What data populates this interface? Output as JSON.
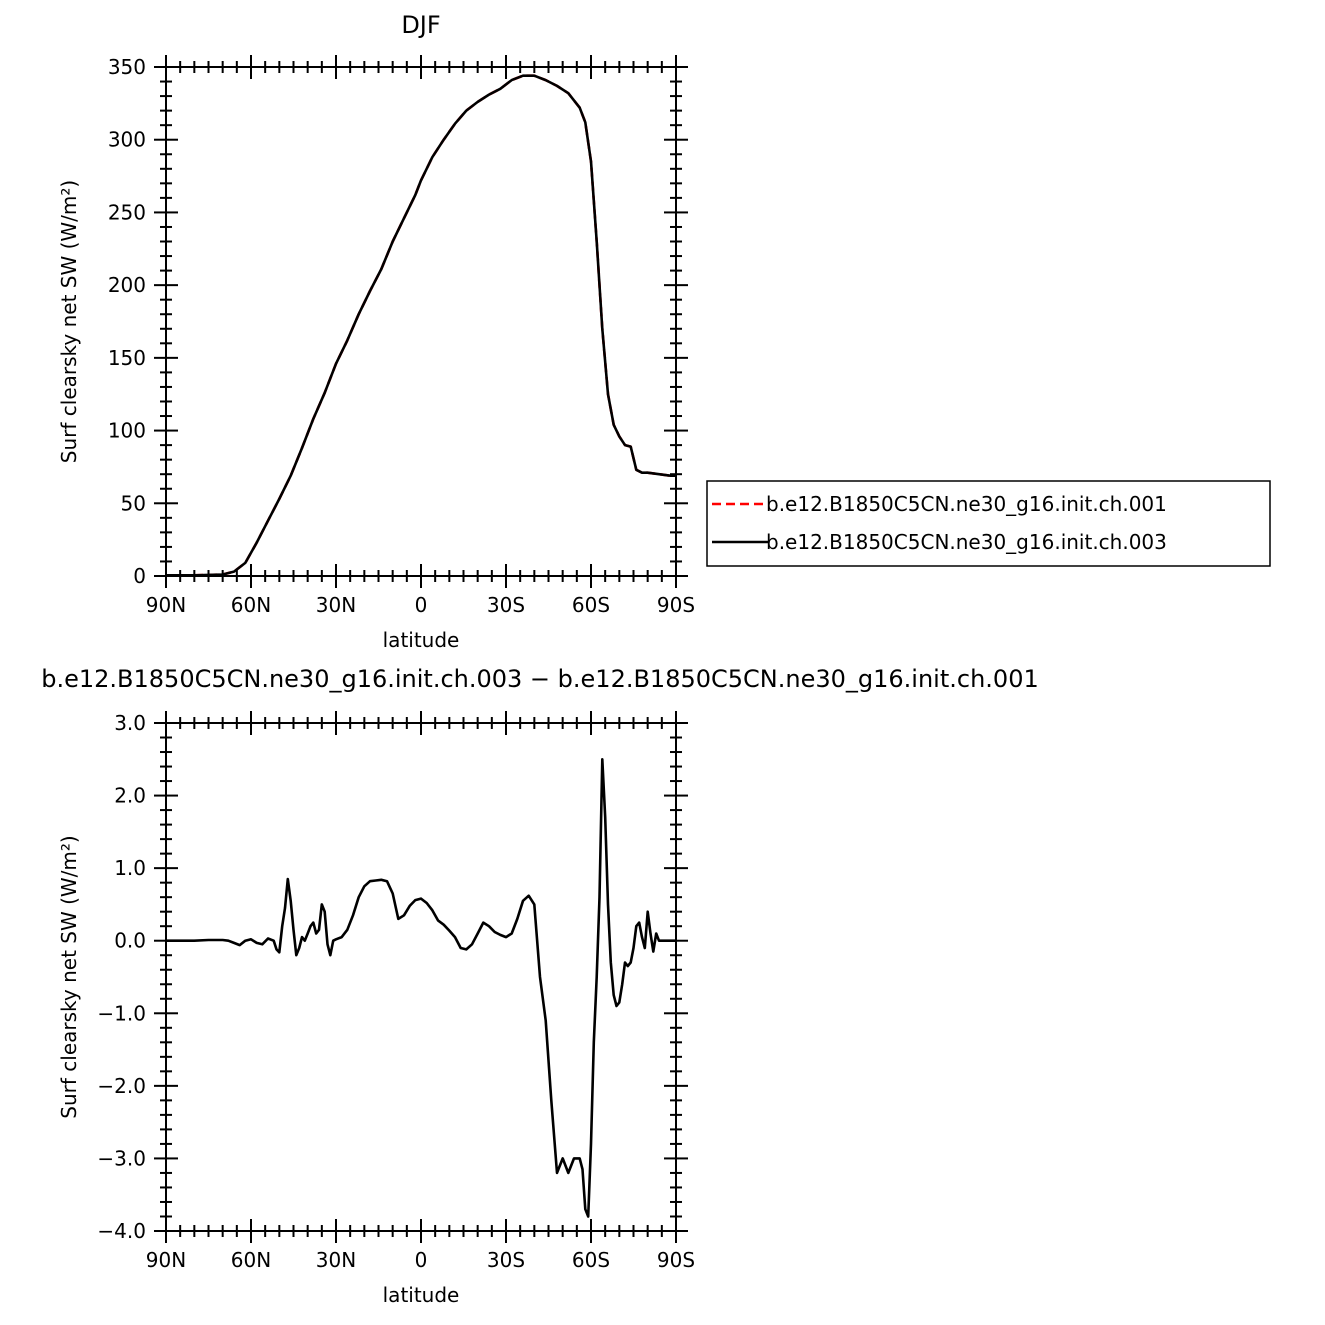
{
  "chart_data": [
    {
      "type": "line",
      "title": "DJF",
      "xlabel": "latitude",
      "ylabel": "Surf clearsky net SW (W/m²)",
      "xlim": [
        90,
        -90
      ],
      "ylim": [
        0,
        350
      ],
      "x_ticks": [
        {
          "value": 90,
          "label": "90N"
        },
        {
          "value": 60,
          "label": "60N"
        },
        {
          "value": 30,
          "label": "30N"
        },
        {
          "value": 0,
          "label": "0"
        },
        {
          "value": -30,
          "label": "30S"
        },
        {
          "value": -60,
          "label": "60S"
        },
        {
          "value": -90,
          "label": "90S"
        }
      ],
      "y_ticks": [
        {
          "value": 0,
          "label": "0"
        },
        {
          "value": 50,
          "label": "50"
        },
        {
          "value": 100,
          "label": "100"
        },
        {
          "value": 150,
          "label": "150"
        },
        {
          "value": 200,
          "label": "200"
        },
        {
          "value": 250,
          "label": "250"
        },
        {
          "value": 300,
          "label": "300"
        },
        {
          "value": 350,
          "label": "350"
        }
      ],
      "legend_position": "right",
      "series": [
        {
          "name": "b.e12.B1850C5CN.ne30_g16.init.ch.001",
          "color": "#ff0000",
          "style": "dashed",
          "x": [
            90,
            80,
            70,
            66,
            62,
            58,
            54,
            50,
            46,
            42,
            38,
            34,
            30,
            26,
            22,
            18,
            14,
            10,
            6,
            2,
            0,
            -4,
            -8,
            -12,
            -16,
            -20,
            -24,
            -28,
            -32,
            -36,
            -40,
            -44,
            -48,
            -52,
            -56,
            -58,
            -60,
            -62,
            -64,
            -66,
            -68,
            -70,
            -72,
            -74,
            -76,
            -78,
            -80,
            -84,
            -88,
            -90
          ],
          "values": [
            0.5,
            0.5,
            1,
            3,
            9,
            23,
            38,
            53,
            69,
            88,
            108,
            126,
            146,
            162,
            180,
            196,
            211,
            230,
            246,
            262,
            272,
            288,
            300,
            311,
            320,
            326,
            331,
            335,
            341,
            344,
            344,
            341,
            337,
            332,
            322,
            312,
            285,
            230,
            170,
            125,
            104,
            96,
            90,
            89,
            73,
            71,
            71,
            70,
            69,
            69
          ]
        },
        {
          "name": "b.e12.B1850C5CN.ne30_g16.init.ch.003",
          "color": "#000000",
          "style": "solid",
          "x": [
            90,
            80,
            70,
            66,
            62,
            58,
            54,
            50,
            46,
            42,
            38,
            34,
            30,
            26,
            22,
            18,
            14,
            10,
            6,
            2,
            0,
            -4,
            -8,
            -12,
            -16,
            -20,
            -24,
            -28,
            -32,
            -36,
            -40,
            -44,
            -48,
            -52,
            -56,
            -58,
            -60,
            -62,
            -64,
            -66,
            -68,
            -70,
            -72,
            -74,
            -76,
            -78,
            -80,
            -84,
            -88,
            -90
          ],
          "values": [
            0.5,
            0.5,
            1,
            3,
            9,
            23,
            38,
            53,
            69,
            88,
            108,
            126,
            146,
            162,
            180,
            196,
            211,
            230,
            246,
            262,
            272,
            288,
            300,
            311,
            320,
            326,
            331,
            335,
            341,
            344,
            344,
            341,
            337,
            332,
            322,
            312,
            285,
            230,
            170,
            125,
            104,
            96,
            90,
            89,
            73,
            71,
            71,
            70,
            69,
            69
          ]
        }
      ]
    },
    {
      "type": "line",
      "title": "b.e12.B1850C5CN.ne30_g16.init.ch.003 − b.e12.B1850C5CN.ne30_g16.init.ch.001",
      "xlabel": "latitude",
      "ylabel": "Surf clearsky net SW (W/m²)",
      "xlim": [
        90,
        -90
      ],
      "ylim": [
        -4.0,
        3.0
      ],
      "x_ticks": [
        {
          "value": 90,
          "label": "90N"
        },
        {
          "value": 60,
          "label": "60N"
        },
        {
          "value": 30,
          "label": "30N"
        },
        {
          "value": 0,
          "label": "0"
        },
        {
          "value": -30,
          "label": "30S"
        },
        {
          "value": -60,
          "label": "60S"
        },
        {
          "value": -90,
          "label": "90S"
        }
      ],
      "y_ticks": [
        {
          "value": -4.0,
          "label": "−4.0"
        },
        {
          "value": -3.0,
          "label": "−3.0"
        },
        {
          "value": -2.0,
          "label": "−2.0"
        },
        {
          "value": -1.0,
          "label": "−1.0"
        },
        {
          "value": 0.0,
          "label": "0.0"
        },
        {
          "value": 1.0,
          "label": "1.0"
        },
        {
          "value": 2.0,
          "label": "2.0"
        },
        {
          "value": 3.0,
          "label": "3.0"
        }
      ],
      "series": [
        {
          "name": "",
          "color": "#000000",
          "style": "solid",
          "x": [
            90,
            80,
            75,
            70,
            68,
            66,
            64,
            62,
            60,
            58,
            56,
            54,
            52,
            51,
            50,
            49,
            48,
            47,
            46,
            45,
            44,
            43,
            42,
            41,
            40,
            39,
            38,
            37,
            36,
            35,
            34,
            33,
            32,
            31,
            30,
            28,
            26,
            24,
            22,
            20,
            18,
            16,
            14,
            12,
            10,
            8,
            6,
            4,
            2,
            0,
            -2,
            -4,
            -6,
            -8,
            -10,
            -12,
            -14,
            -16,
            -18,
            -20,
            -22,
            -24,
            -26,
            -28,
            -30,
            -32,
            -34,
            -36,
            -38,
            -40,
            -42,
            -44,
            -46,
            -48,
            -50,
            -52,
            -54,
            -56,
            -57,
            -58,
            -59,
            -60,
            -61,
            -62,
            -63,
            -64,
            -65,
            -66,
            -67,
            -68,
            -69,
            -70,
            -71,
            -72,
            -73,
            -74,
            -75,
            -76,
            -77,
            -78,
            -79,
            -80,
            -81,
            -82,
            -83,
            -84,
            -85,
            -86,
            -87,
            -88,
            -89,
            -90
          ],
          "values": [
            0.0,
            0.0,
            0.01,
            0.01,
            0.0,
            -0.03,
            -0.06,
            0.0,
            0.02,
            -0.03,
            -0.05,
            0.03,
            0.0,
            -0.12,
            -0.16,
            0.2,
            0.45,
            0.85,
            0.55,
            0.15,
            -0.2,
            -0.1,
            0.05,
            0.0,
            0.1,
            0.2,
            0.25,
            0.1,
            0.15,
            0.5,
            0.4,
            -0.05,
            -0.2,
            0.0,
            0.02,
            0.05,
            0.15,
            0.35,
            0.6,
            0.75,
            0.82,
            0.83,
            0.84,
            0.82,
            0.65,
            0.3,
            0.35,
            0.48,
            0.56,
            0.58,
            0.52,
            0.42,
            0.28,
            0.22,
            0.14,
            0.05,
            -0.1,
            -0.12,
            -0.05,
            0.1,
            0.25,
            0.2,
            0.12,
            0.08,
            0.05,
            0.1,
            0.3,
            0.55,
            0.62,
            0.5,
            -0.5,
            -1.1,
            -2.2,
            -3.2,
            -3.0,
            -3.2,
            -3.0,
            -3.0,
            -3.15,
            -3.7,
            -3.8,
            -2.8,
            -1.4,
            -0.5,
            0.6,
            2.5,
            1.7,
            0.5,
            -0.3,
            -0.75,
            -0.9,
            -0.85,
            -0.6,
            -0.3,
            -0.35,
            -0.3,
            -0.1,
            0.2,
            0.25,
            0.05,
            -0.1,
            0.4,
            0.1,
            -0.15,
            0.1,
            0.0,
            0.0,
            0.0,
            0.0,
            0.0,
            0.0,
            0.0
          ]
        }
      ]
    }
  ]
}
